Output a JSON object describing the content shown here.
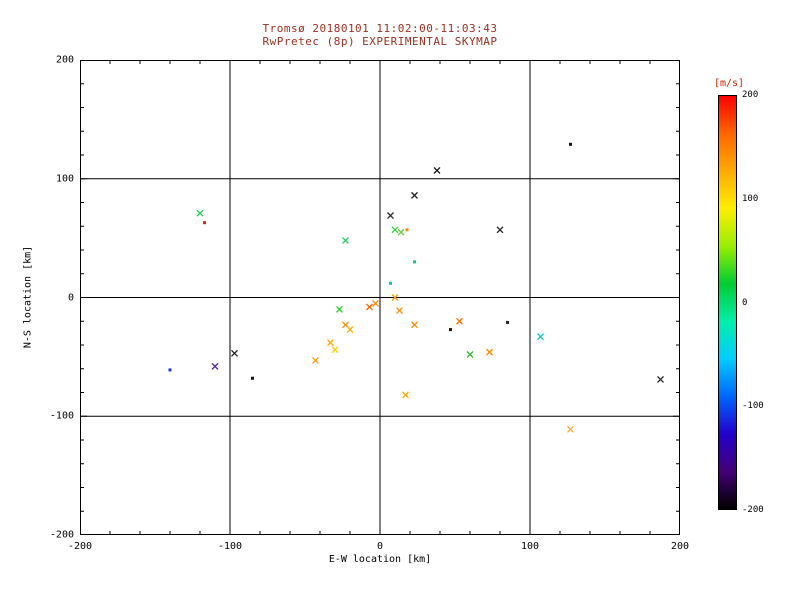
{
  "colors": {
    "title": "#a03020",
    "axis": "#000000",
    "colorbar_label": "#cc2200",
    "background": "#ffffff"
  },
  "chart_data": {
    "type": "scatter",
    "title": "Tromsø 20180101 11:02:00-11:03:43",
    "subtitle": "RwPretec (8p) EXPERIMENTAL SKYMAP",
    "xlabel": "E-W location [km]",
    "ylabel": "N-S location [km]",
    "xlim": [
      -200,
      200
    ],
    "ylim": [
      -200,
      200
    ],
    "xticks": [
      -200,
      -100,
      0,
      100,
      200
    ],
    "yticks": [
      -200,
      -100,
      0,
      100,
      200
    ],
    "grid": true,
    "legend_position": "none",
    "colorbar": {
      "label": "[m/s]",
      "min": -200,
      "max": 200,
      "ticks": [
        200,
        100,
        0,
        -100,
        -200
      ],
      "colors_top_to_bottom": [
        "#ff0000",
        "#ff6600",
        "#ffaa00",
        "#ffee00",
        "#99ee00",
        "#00cc33",
        "#00eeaa",
        "#00ccff",
        "#0066ff",
        "#2200cc",
        "#440077",
        "#000000"
      ]
    },
    "points": [
      {
        "x": -140,
        "y": -61,
        "color": "#2233cc",
        "marker": "dot"
      },
      {
        "x": -120,
        "y": 71,
        "color": "#22cc55",
        "marker": "x"
      },
      {
        "x": -117,
        "y": 63,
        "color": "#cc3300",
        "marker": "dot"
      },
      {
        "x": -110,
        "y": -58,
        "color": "#5522aa",
        "marker": "x"
      },
      {
        "x": -97,
        "y": -47,
        "color": "#222222",
        "marker": "x"
      },
      {
        "x": -85,
        "y": -68,
        "color": "#111111",
        "marker": "dot"
      },
      {
        "x": -43,
        "y": -53,
        "color": "#ff9900",
        "marker": "x"
      },
      {
        "x": -33,
        "y": -38,
        "color": "#ffaa00",
        "marker": "x"
      },
      {
        "x": -30,
        "y": -44,
        "color": "#ffcc00",
        "marker": "x"
      },
      {
        "x": -27,
        "y": -10,
        "color": "#33cc33",
        "marker": "x"
      },
      {
        "x": -23,
        "y": 48,
        "color": "#33cc66",
        "marker": "x"
      },
      {
        "x": -23,
        "y": -23,
        "color": "#ff8800",
        "marker": "x"
      },
      {
        "x": -20,
        "y": -27,
        "color": "#ffaa00",
        "marker": "x"
      },
      {
        "x": -7,
        "y": -8,
        "color": "#ff6600",
        "marker": "x"
      },
      {
        "x": -3,
        "y": -5,
        "color": "#ff8800",
        "marker": "x"
      },
      {
        "x": 7,
        "y": 69,
        "color": "#222222",
        "marker": "x"
      },
      {
        "x": 7,
        "y": 12,
        "color": "#00ccaa",
        "marker": "dot"
      },
      {
        "x": 10,
        "y": 57,
        "color": "#33cc44",
        "marker": "x"
      },
      {
        "x": 14,
        "y": 55,
        "color": "#66cc33",
        "marker": "x"
      },
      {
        "x": 18,
        "y": 57,
        "color": "#ff8800",
        "marker": "dot"
      },
      {
        "x": 10,
        "y": 0,
        "color": "#ff9900",
        "marker": "x"
      },
      {
        "x": 13,
        "y": -11,
        "color": "#ff8800",
        "marker": "x"
      },
      {
        "x": 23,
        "y": 86,
        "color": "#222222",
        "marker": "x"
      },
      {
        "x": 23,
        "y": 30,
        "color": "#00cc88",
        "marker": "dot"
      },
      {
        "x": 23,
        "y": -23,
        "color": "#ff8800",
        "marker": "x"
      },
      {
        "x": 17,
        "y": -82,
        "color": "#ffaa00",
        "marker": "x"
      },
      {
        "x": 38,
        "y": 107,
        "color": "#111111",
        "marker": "x"
      },
      {
        "x": 47,
        "y": -27,
        "color": "#331100",
        "marker": "dot"
      },
      {
        "x": 53,
        "y": -20,
        "color": "#ff7700",
        "marker": "x"
      },
      {
        "x": 60,
        "y": -48,
        "color": "#33bb33",
        "marker": "x"
      },
      {
        "x": 73,
        "y": -46,
        "color": "#ff8800",
        "marker": "x"
      },
      {
        "x": 80,
        "y": 57,
        "color": "#222222",
        "marker": "x"
      },
      {
        "x": 85,
        "y": -21,
        "color": "#222222",
        "marker": "dot"
      },
      {
        "x": 107,
        "y": -33,
        "color": "#00ccbb",
        "marker": "x"
      },
      {
        "x": 127,
        "y": 129,
        "color": "#111111",
        "marker": "dot"
      },
      {
        "x": 127,
        "y": -111,
        "color": "#ffaa33",
        "marker": "x"
      },
      {
        "x": 187,
        "y": -69,
        "color": "#222222",
        "marker": "x"
      }
    ]
  }
}
